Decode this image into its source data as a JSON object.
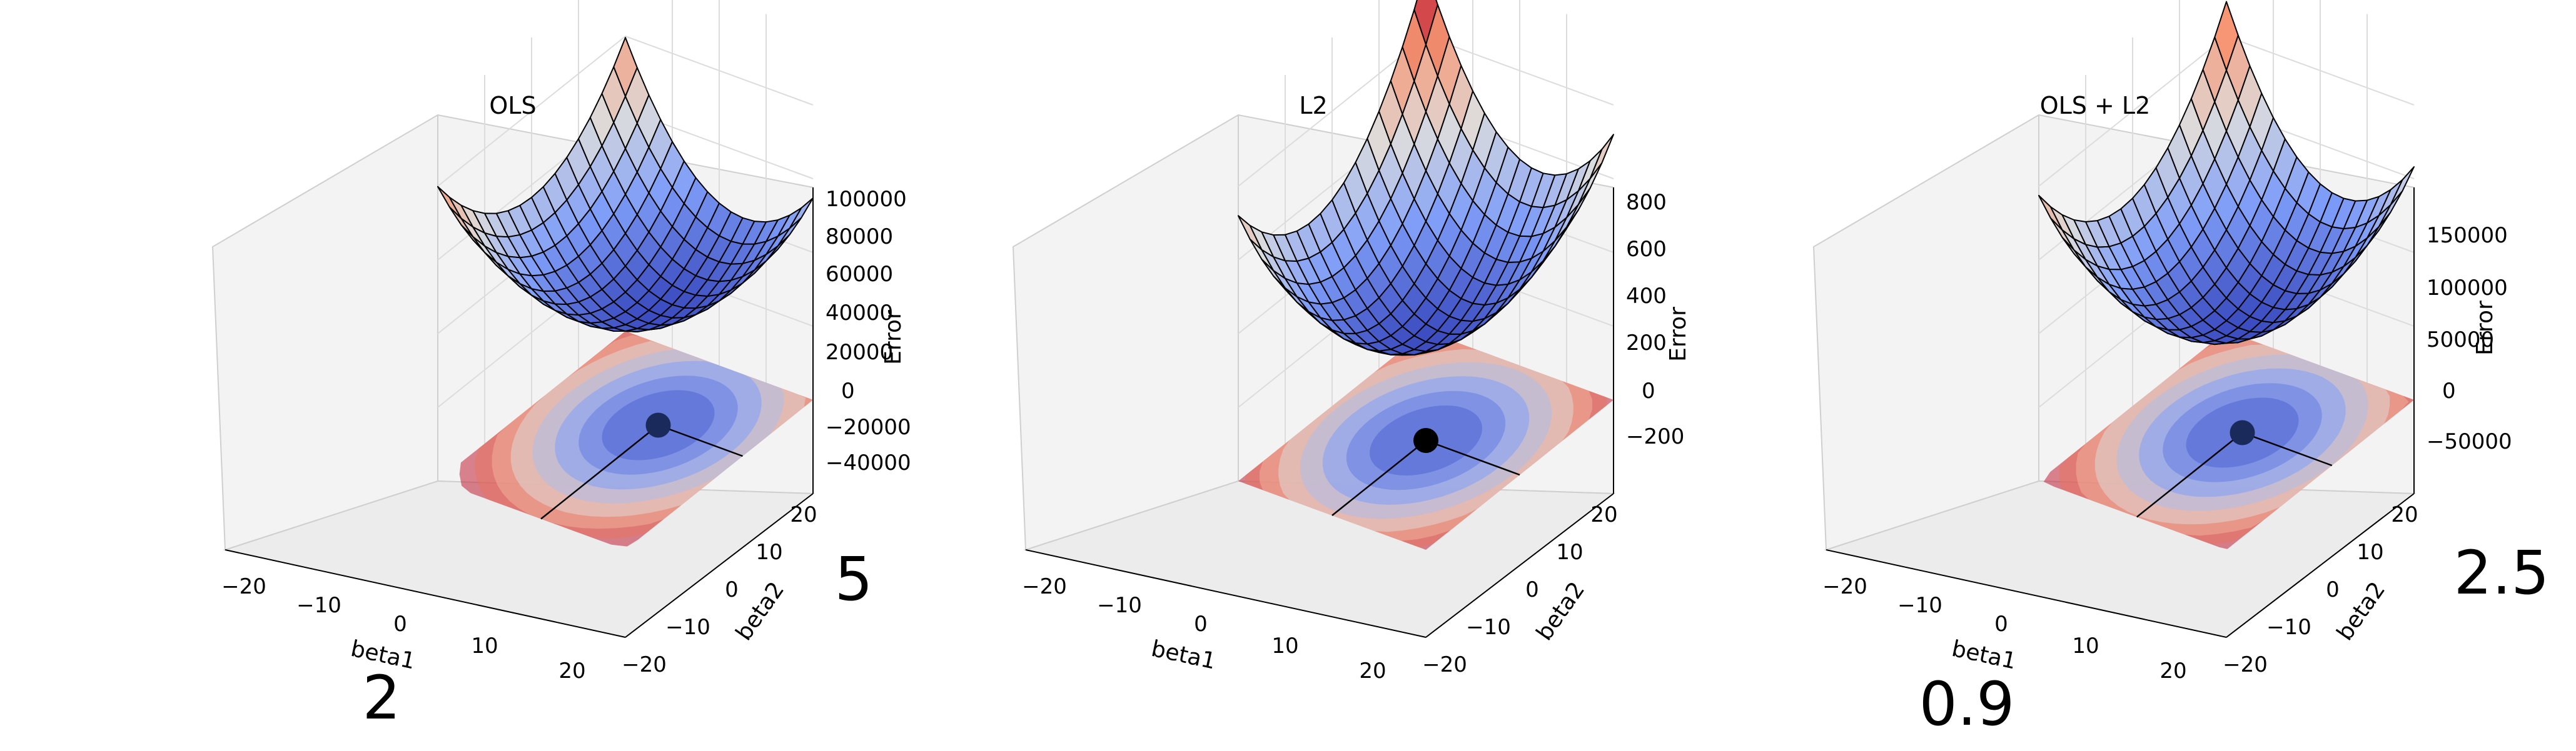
{
  "chart_data": [
    {
      "type": "surface3d",
      "title": "OLS",
      "xlabel": "beta1",
      "ylabel": "beta2",
      "zlabel": "Error",
      "x_ticks": [
        "−20",
        "−10",
        "0",
        "10",
        "20"
      ],
      "y_ticks": [
        "−20",
        "−10",
        "0",
        "10",
        "20"
      ],
      "z_ticks": [
        "−40000",
        "−20000",
        "0",
        "20000",
        "40000",
        "60000",
        "80000",
        "100000"
      ],
      "xlim": [
        -20,
        20
      ],
      "ylim": [
        -20,
        20
      ],
      "zlim": [
        -45000,
        105000
      ],
      "surface_z_range": [
        0,
        100000
      ],
      "contour_floor": true,
      "minimum_point": {
        "beta1": 2,
        "beta2": 5
      },
      "annotations": {
        "beta1_value": "2",
        "beta2_value": "5"
      },
      "colormap": "coolwarm"
    },
    {
      "type": "surface3d",
      "title": "L2",
      "xlabel": "beta1",
      "ylabel": "beta2",
      "zlabel": "Error",
      "x_ticks": [
        "−20",
        "−10",
        "0",
        "10",
        "20"
      ],
      "y_ticks": [
        "−20",
        "−10",
        "0",
        "10",
        "20"
      ],
      "z_ticks": [
        "−200",
        "0",
        "200",
        "400",
        "600",
        "800"
      ],
      "xlim": [
        -20,
        20
      ],
      "ylim": [
        -20,
        20
      ],
      "zlim": [
        -300,
        820
      ],
      "surface_z_range": [
        0,
        800
      ],
      "contour_floor": true,
      "minimum_point": {
        "beta1": 0,
        "beta2": 0
      },
      "annotations": {},
      "colormap": "coolwarm"
    },
    {
      "type": "surface3d",
      "title": "OLS + L2",
      "xlabel": "beta1",
      "ylabel": "beta2",
      "zlabel": "Error",
      "x_ticks": [
        "−20",
        "−10",
        "0",
        "10",
        "20"
      ],
      "y_ticks": [
        "−20",
        "−10",
        "0",
        "10",
        "20"
      ],
      "z_ticks": [
        "−50000",
        "0",
        "50000",
        "100000",
        "150000"
      ],
      "xlim": [
        -20,
        20
      ],
      "ylim": [
        -20,
        20
      ],
      "zlim": [
        -70000,
        180000
      ],
      "surface_z_range": [
        0,
        180000
      ],
      "contour_floor": true,
      "minimum_point": {
        "beta1": 0.9,
        "beta2": 2.5
      },
      "annotations": {
        "beta1_value": "0.9",
        "beta2_value": "2.5"
      },
      "colormap": "coolwarm"
    }
  ]
}
